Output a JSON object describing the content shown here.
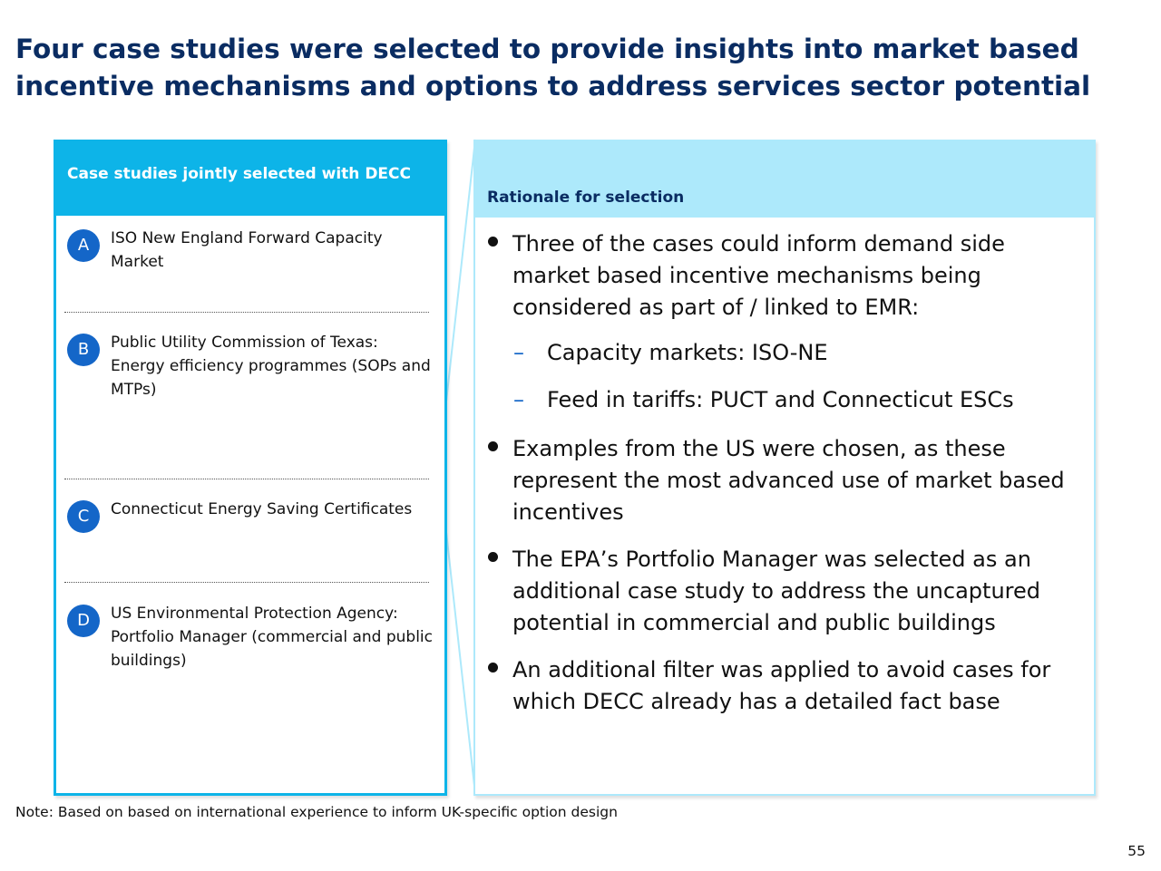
{
  "title": "Four case studies were selected to provide insights into market based incentive mechanisms and options to address services sector potential",
  "left_panel": {
    "heading": "Case studies jointly selected with DECC",
    "cases": [
      {
        "badge": "A",
        "text": "ISO New England Forward Capacity Market"
      },
      {
        "badge": "B",
        "text": "Public Utility Commission of Texas: Energy efficiency programmes (SOPs and MTPs)"
      },
      {
        "badge": "C",
        "text": "Connecticut Energy Saving Certificates"
      },
      {
        "badge": "D",
        "text": "US Environmental Protection Agency: Portfolio Manager (commercial and public buildings)"
      }
    ]
  },
  "right_panel": {
    "heading": "Rationale for selection",
    "bullets": [
      "Three of the cases could inform demand side market based incentive mechanisms being considered as part of / linked to EMR:",
      "Examples from the US were chosen, as these represent the most advanced use of market based incentives",
      "The EPA’s Portfolio Manager was selected as an additional case study to address the uncaptured potential in commercial and public buildings",
      "An additional filter was applied to avoid cases for which DECC already has a detailed fact base"
    ],
    "sub_bullets": [
      "Capacity markets: ISO-NE",
      "Feed in tariffs: PUCT and Connecticut ESCs"
    ]
  },
  "note": "Note: Based on based on international experience to inform UK-specific option design",
  "page_number": "55",
  "colors": {
    "title": "#0a2c62",
    "left_accent": "#0db4e8",
    "right_accent": "#ade9fb",
    "badge": "#1466c8"
  }
}
